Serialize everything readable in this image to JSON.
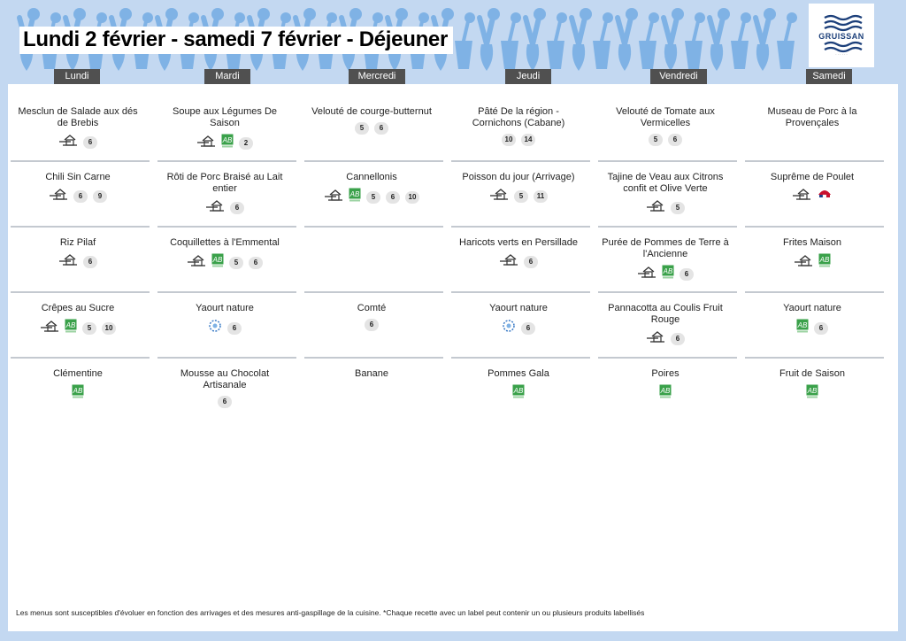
{
  "title": "Lundi 2 février - samedi 7 février  - Déjeuner",
  "logo": {
    "name": "GRUISSAN",
    "tagline": "· · · · · ·"
  },
  "days": [
    "Lundi",
    "Mardi",
    "Mercredi",
    "Jeudi",
    "Vendredi",
    "Samedi"
  ],
  "menu": [
    [
      {
        "dish": "Mesclun de Salade aux dés de Brebis",
        "icons": [
          "fait-maison"
        ],
        "allergens": [
          "6"
        ]
      },
      {
        "dish": "Chili Sin Carne",
        "icons": [
          "fait-maison"
        ],
        "allergens": [
          "6",
          "9"
        ]
      },
      {
        "dish": "Riz Pilaf",
        "icons": [
          "fait-maison"
        ],
        "allergens": [
          "6"
        ]
      },
      {
        "dish": "Crêpes au Sucre",
        "icons": [
          "fait-maison",
          "bio"
        ],
        "allergens": [
          "5",
          "10"
        ]
      },
      {
        "dish": "Clémentine",
        "icons": [
          "bio"
        ],
        "allergens": []
      }
    ],
    [
      {
        "dish": "Soupe aux Légumes De Saison",
        "icons": [
          "fait-maison",
          "bio"
        ],
        "allergens": [
          "2"
        ]
      },
      {
        "dish": "Rôti de Porc Braisé au Lait entier",
        "icons": [
          "fait-maison"
        ],
        "allergens": [
          "6"
        ]
      },
      {
        "dish": "Coquillettes à l'Emmental",
        "icons": [
          "fait-maison",
          "bio"
        ],
        "allergens": [
          "5",
          "6"
        ]
      },
      {
        "dish": "Yaourt nature",
        "icons": [
          "label-blue"
        ],
        "allergens": [
          "6"
        ]
      },
      {
        "dish": "Mousse au Chocolat Artisanale",
        "icons": [],
        "allergens": [
          "6"
        ]
      }
    ],
    [
      {
        "dish": "Velouté de courge-butternut",
        "icons": [],
        "allergens": [
          "5",
          "6"
        ]
      },
      {
        "dish": "Cannellonis",
        "icons": [
          "fait-maison",
          "bio"
        ],
        "allergens": [
          "5",
          "6",
          "10"
        ]
      },
      {
        "dish": "",
        "icons": [],
        "allergens": []
      },
      {
        "dish": "Comté",
        "icons": [],
        "allergens": [
          "6"
        ]
      },
      {
        "dish": "Banane",
        "icons": [],
        "allergens": []
      }
    ],
    [
      {
        "dish": "Pâté De la région - Cornichons (Cabane)",
        "icons": [],
        "allergens": [
          "10",
          "14"
        ]
      },
      {
        "dish": "Poisson du jour (Arrivage)",
        "icons": [
          "fait-maison"
        ],
        "allergens": [
          "5",
          "11"
        ]
      },
      {
        "dish": "Haricots verts en Persillade",
        "icons": [
          "fait-maison"
        ],
        "allergens": [
          "6"
        ]
      },
      {
        "dish": "Yaourt nature",
        "icons": [
          "label-blue"
        ],
        "allergens": [
          "6"
        ]
      },
      {
        "dish": "Pommes Gala",
        "icons": [
          "bio"
        ],
        "allergens": []
      }
    ],
    [
      {
        "dish": "Velouté de Tomate aux Vermicelles",
        "icons": [],
        "allergens": [
          "5",
          "6"
        ]
      },
      {
        "dish": "Tajine de Veau aux Citrons confit et Olive Verte",
        "icons": [
          "fait-maison"
        ],
        "allergens": [
          "5"
        ]
      },
      {
        "dish": "Purée de Pommes de Terre à l'Ancienne",
        "icons": [
          "fait-maison",
          "bio"
        ],
        "allergens": [
          "6"
        ]
      },
      {
        "dish": "Pannacotta au Coulis Fruit Rouge",
        "icons": [
          "fait-maison"
        ],
        "allergens": [
          "6"
        ]
      },
      {
        "dish": "Poires",
        "icons": [
          "bio"
        ],
        "allergens": []
      }
    ],
    [
      {
        "dish": "Museau de Porc à la Provençales",
        "icons": [],
        "allergens": []
      },
      {
        "dish": "Suprême de Poulet",
        "icons": [
          "fait-maison",
          "label-france"
        ],
        "allergens": []
      },
      {
        "dish": "Frites Maison",
        "icons": [
          "fait-maison",
          "bio"
        ],
        "allergens": []
      },
      {
        "dish": "Yaourt nature",
        "icons": [
          "bio"
        ],
        "allergens": [
          "6"
        ]
      },
      {
        "dish": "Fruit de Saison",
        "icons": [
          "bio"
        ],
        "allergens": []
      }
    ]
  ],
  "footer": "Les menus sont susceptibles d'évoluer en fonction des arrivages et des mesures anti-gaspillage de la cuisine. *Chaque recette avec un label peut contenir un ou plusieurs produits labellisés",
  "colors": {
    "background": "#c3d8f1",
    "banner_shape": "#7fb2e5",
    "header": "#505050",
    "bio_green": "#3aa14a",
    "logo_blue": "#1c3f7a"
  }
}
